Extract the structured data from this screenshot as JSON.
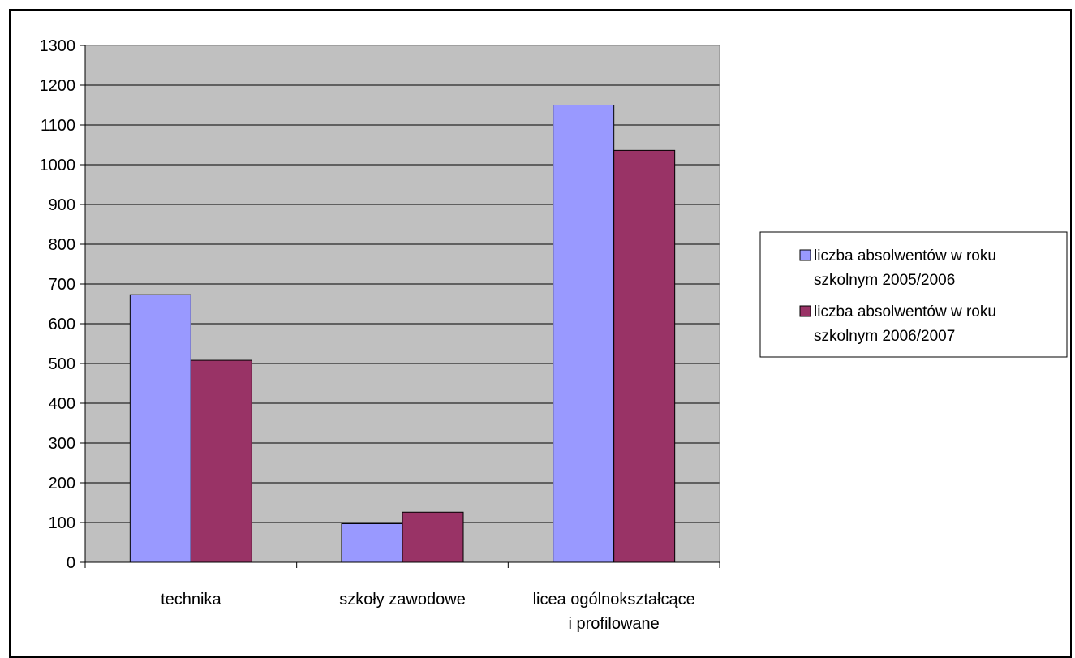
{
  "chart_data": {
    "type": "bar",
    "categories": [
      [
        "technika"
      ],
      [
        "szkoły zawodowe"
      ],
      [
        "licea ogólnokształcące",
        "i profilowane"
      ]
    ],
    "series": [
      {
        "name": "liczba absolwentów w roku szkolnym 2005/2006",
        "name_lines": [
          "liczba absolwentów w roku",
          "szkolnym 2005/2006"
        ],
        "color": "#9999ff",
        "values": [
          673,
          97,
          1150
        ]
      },
      {
        "name": "liczba absolwentów w roku szkolnym 2006/2007",
        "name_lines": [
          "liczba absolwentów w roku",
          "szkolnym 2006/2007"
        ],
        "color": "#993366",
        "values": [
          508,
          126,
          1036
        ]
      }
    ],
    "ylim": [
      0,
      1300
    ],
    "ytick_step": 100,
    "grid": true,
    "plot_background": "#c0c0c0",
    "legend_position": "right"
  }
}
